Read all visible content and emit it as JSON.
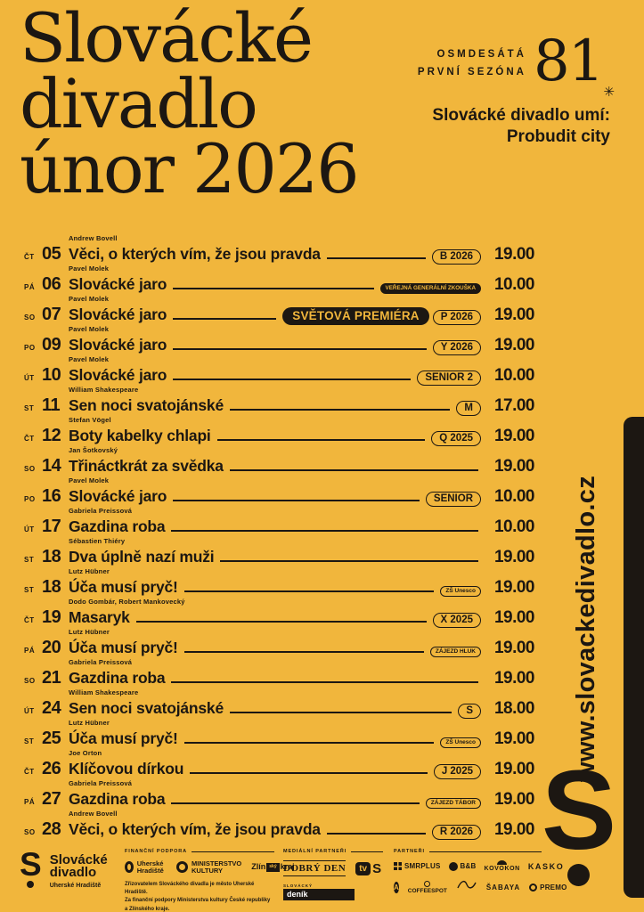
{
  "colors": {
    "background": "#F1B63C",
    "ink": "#1C1712"
  },
  "header": {
    "title_lines": [
      "Slovácké",
      "divadlo",
      "únor 2026"
    ],
    "season_line1": "OSMDESÁTÁ",
    "season_line2": "PRVNÍ SEZÓNA",
    "season_number": "81",
    "season_star": "✳",
    "tagline_line1": "Slovácké divadlo umí:",
    "tagline_line2": "Probudit city"
  },
  "schedule": {
    "rows": [
      {
        "day": "ČT",
        "date": "05",
        "author": "Andrew Bovell",
        "title": "Věci, o kterých vím, že jsou pravda",
        "badges": [
          {
            "label": "B 2026",
            "style": "outline"
          }
        ],
        "time": "19.00"
      },
      {
        "day": "PÁ",
        "date": "06",
        "author": "Pavel Molek",
        "title": "Slovácké jaro",
        "badges": [
          {
            "label": "VEŘEJNÁ GENERÁLNÍ ZKOUŠKA",
            "style": "fill-sm"
          }
        ],
        "time": "10.00"
      },
      {
        "day": "SO",
        "date": "07",
        "author": "Pavel Molek",
        "title": "Slovácké jaro",
        "badges": [
          {
            "label": "SVĚTOVÁ PREMIÉRA",
            "style": "fill-lg"
          },
          {
            "label": "P 2026",
            "style": "outline"
          }
        ],
        "time": "19.00"
      },
      {
        "day": "PO",
        "date": "09",
        "author": "Pavel Molek",
        "title": "Slovácké jaro",
        "badges": [
          {
            "label": "Y 2026",
            "style": "outline"
          }
        ],
        "time": "19.00"
      },
      {
        "day": "ÚT",
        "date": "10",
        "author": "Pavel Molek",
        "title": "Slovácké jaro",
        "badges": [
          {
            "label": "SENIOR 2",
            "style": "outline"
          }
        ],
        "time": "10.00"
      },
      {
        "day": "ST",
        "date": "11",
        "author": "William Shakespeare",
        "title": "Sen noci svatojánské",
        "badges": [
          {
            "label": "M",
            "style": "outline"
          }
        ],
        "time": "17.00"
      },
      {
        "day": "ČT",
        "date": "12",
        "author": "Stefan Vögel",
        "title": "Boty kabelky chlapi",
        "badges": [
          {
            "label": "Q 2025",
            "style": "outline"
          }
        ],
        "time": "19.00"
      },
      {
        "day": "SO",
        "date": "14",
        "author": "Jan Šotkovský",
        "title": "Třináctkrát za svědka",
        "badges": [],
        "time": "19.00"
      },
      {
        "day": "PO",
        "date": "16",
        "author": "Pavel Molek",
        "title": "Slovácké jaro",
        "badges": [
          {
            "label": "SENIOR",
            "style": "outline"
          }
        ],
        "time": "10.00"
      },
      {
        "day": "ÚT",
        "date": "17",
        "author": "Gabriela Preissová",
        "title": "Gazdina roba",
        "badges": [],
        "time": "10.00"
      },
      {
        "day": "ST",
        "date": "18",
        "author": "Sébastien Thiéry",
        "title": "Dva úplně nazí muži",
        "badges": [],
        "time": "19.00"
      },
      {
        "day": "ST",
        "date": "18",
        "author": "Lutz Hübner",
        "title": "Úča musí pryč!",
        "badges": [
          {
            "label": "ZŠ Unesco",
            "style": "outline-sm"
          }
        ],
        "time": "19.00"
      },
      {
        "day": "ČT",
        "date": "19",
        "author": "Dodo Gombár, Robert Mankovecký",
        "title": "Masaryk",
        "badges": [
          {
            "label": "X 2025",
            "style": "outline"
          }
        ],
        "time": "19.00"
      },
      {
        "day": "PÁ",
        "date": "20",
        "author": "Lutz Hübner",
        "title": "Úča musí pryč!",
        "badges": [
          {
            "label": "ZÁJEZD HLUK",
            "style": "outline-sm"
          }
        ],
        "time": "19.00"
      },
      {
        "day": "SO",
        "date": "21",
        "author": "Gabriela Preissová",
        "title": "Gazdina roba",
        "badges": [],
        "time": "19.00"
      },
      {
        "day": "ÚT",
        "date": "24",
        "author": "William Shakespeare",
        "title": "Sen noci svatojánské",
        "badges": [
          {
            "label": "S",
            "style": "outline"
          }
        ],
        "time": "18.00"
      },
      {
        "day": "ST",
        "date": "25",
        "author": "Lutz Hübner",
        "title": "Úča musí pryč!",
        "badges": [
          {
            "label": "ZŠ Unesco",
            "style": "outline-sm"
          }
        ],
        "time": "19.00"
      },
      {
        "day": "ČT",
        "date": "26",
        "author": "Joe Orton",
        "title": "Klíčovou dírkou",
        "badges": [
          {
            "label": "J 2025",
            "style": "outline"
          }
        ],
        "time": "19.00"
      },
      {
        "day": "PÁ",
        "date": "27",
        "author": "Gabriela Preissová",
        "title": "Gazdina roba",
        "badges": [
          {
            "label": "ZÁJEZD TÁBOR",
            "style": "outline-sm"
          }
        ],
        "time": "19.00"
      },
      {
        "day": "SO",
        "date": "28",
        "author": "Andrew Bovell",
        "title": "Věci, o kterých vím, že jsou pravda",
        "badges": [
          {
            "label": "R 2026",
            "style": "outline"
          }
        ],
        "time": "19.00"
      }
    ]
  },
  "rail": {
    "website": "www.slovackedivadlo.cz",
    "logo_letter": "S"
  },
  "footer": {
    "theatre": {
      "logo_letter": "S",
      "name_line1": "Slovácké",
      "name_line2": "divadlo",
      "city": "Uherské Hradiště"
    },
    "support": {
      "heading": "FINANČNÍ PODPORA",
      "uh_label": "Uherské Hradiště",
      "ministry_line1": "MINISTERSTVO",
      "ministry_line2": "KULTURY",
      "zlin_part1": "Zlín",
      "zlin_boxed": "ský",
      "zlin_part2": "kraj",
      "note_line1": "Zřizovatelem Slováckého divadla je město Uherské Hradiště.",
      "note_line2": "Za finanční podpory Ministerstva kultury České republiky a Zlínského kraje."
    },
    "media": {
      "heading": "MEDIÁLNÍ PARTNEŘI",
      "dobry_den": "DOBRÝ DEN",
      "tvs_tv": "tv",
      "tvs_s": "S",
      "denik_top": "SLOVÁCKÝ",
      "denik_label": "deník"
    },
    "partners": {
      "heading": "PARTNEŘI",
      "smrplus": "SMRPLUS",
      "bb": "B&B",
      "kovokon": "KOVOKON",
      "kasko": "KASKO",
      "a_circle": "A",
      "coffeespot": "COFFEESPOT",
      "sabaya": "ŠABAYA",
      "opremo": "PREMO"
    }
  }
}
